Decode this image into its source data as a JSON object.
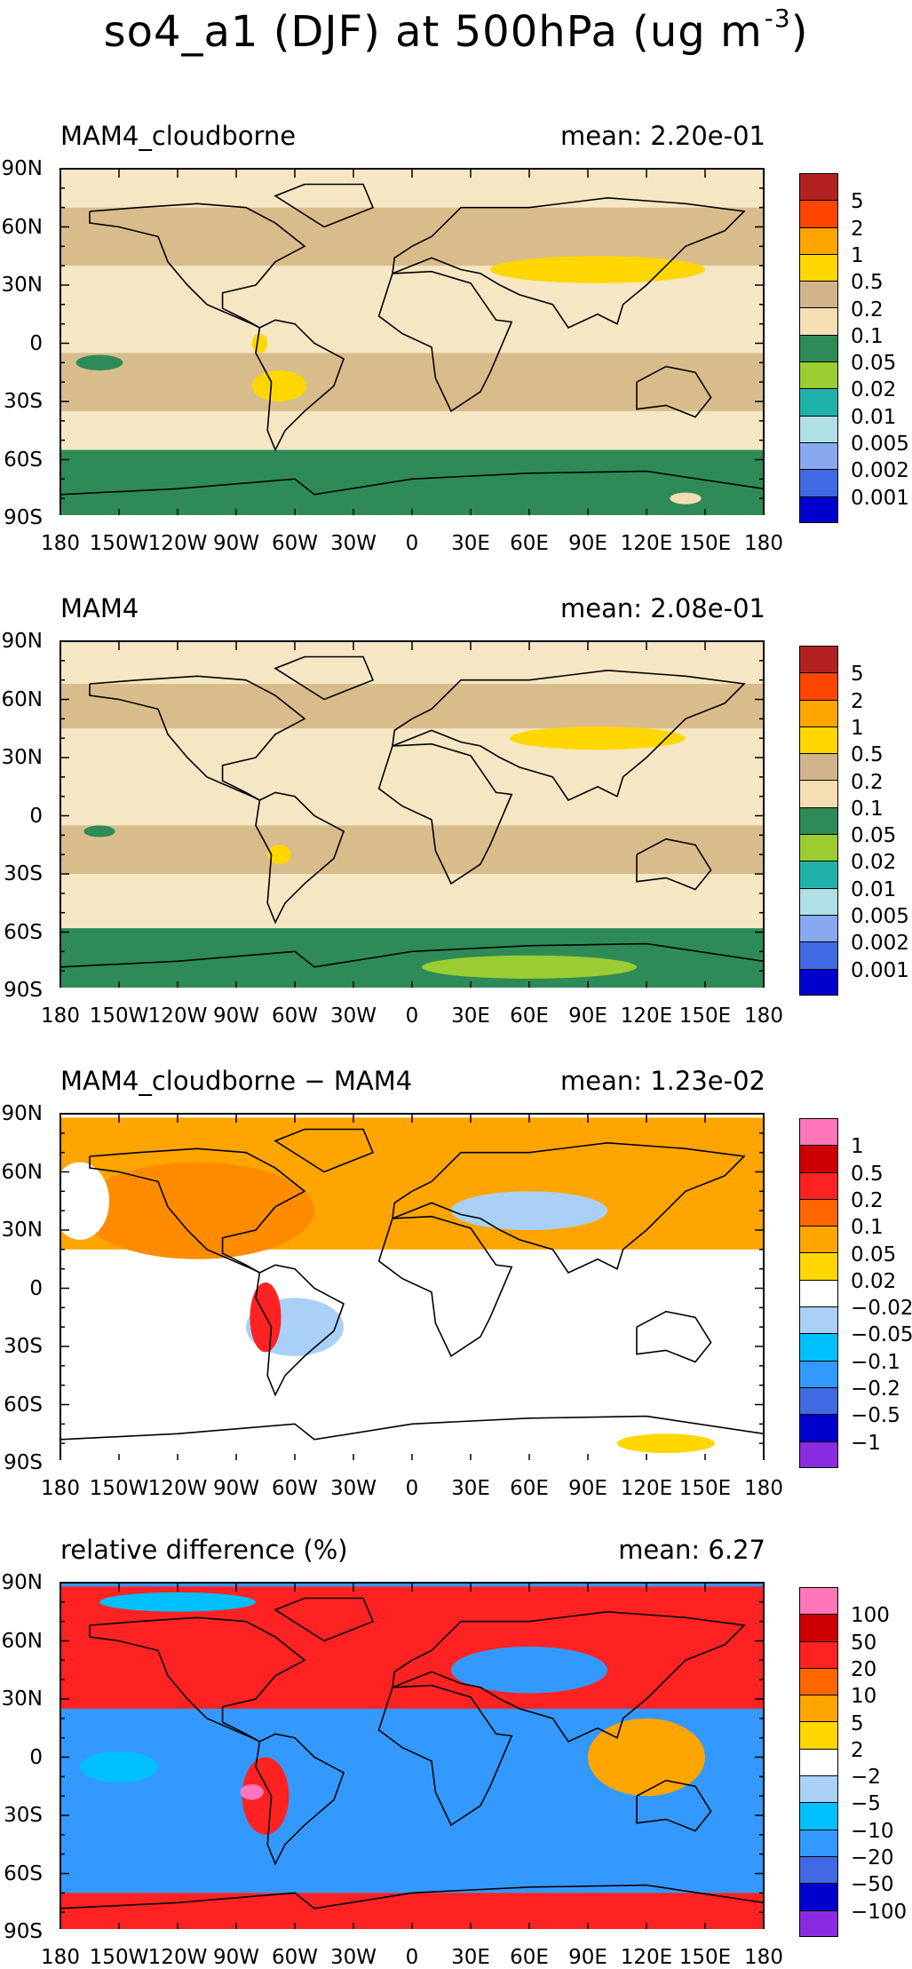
{
  "figure": {
    "title_main": "so4_a1 (DJF) at 500hPa (ug m",
    "title_exp": "-3",
    "title_close": ")"
  },
  "axes": {
    "lon_ticks": [
      "180",
      "150W",
      "120W",
      "90W",
      "60W",
      "30W",
      "0",
      "30E",
      "60E",
      "90E",
      "120E",
      "150E",
      "180"
    ],
    "lat_ticks": [
      "90N",
      "60N",
      "30N",
      "0",
      "30S",
      "60S",
      "90S"
    ]
  },
  "panels": [
    {
      "title": "MAM4_cloudborne",
      "mean": "mean: 2.20e-01",
      "colorbar": {
        "labels": [
          "5",
          "2",
          "1",
          "0.5",
          "0.2",
          "0.1",
          "0.05",
          "0.02",
          "0.01",
          "0.005",
          "0.002",
          "0.001"
        ],
        "colors": [
          "#b22222",
          "#ff4500",
          "#ffa500",
          "#ffd700",
          "#d2b48c",
          "#f5deb3",
          "#2e8b57",
          "#9acd32",
          "#20b2aa",
          "#b0e0e6",
          "#87a9f0",
          "#4169e1",
          "#0000cd"
        ]
      },
      "background": "#f5e6c4",
      "fields": [
        {
          "type": "band",
          "lat": [
            40,
            70
          ],
          "color": "#d9bc8c"
        },
        {
          "type": "band",
          "lat": [
            -35,
            -5
          ],
          "color": "#d9bc8c"
        },
        {
          "type": "band",
          "lat": [
            -90,
            -55
          ],
          "color": "#2e8b57"
        },
        {
          "type": "blob",
          "lon": 95,
          "lat": 38,
          "rx": 55,
          "ry": 7,
          "color": "#ffd700"
        },
        {
          "type": "blob",
          "lon": -68,
          "lat": -22,
          "rx": 14,
          "ry": 8,
          "color": "#ffd700"
        },
        {
          "type": "blob",
          "lon": -78,
          "lat": 0,
          "rx": 4,
          "ry": 5,
          "color": "#ffd700"
        },
        {
          "type": "blob",
          "lon": -160,
          "lat": -10,
          "rx": 12,
          "ry": 4,
          "color": "#2e8b57"
        },
        {
          "type": "blob",
          "lon": 140,
          "lat": -80,
          "rx": 8,
          "ry": 3,
          "color": "#f5deb3"
        }
      ]
    },
    {
      "title": "MAM4",
      "mean": "mean: 2.08e-01",
      "colorbar": {
        "labels": [
          "5",
          "2",
          "1",
          "0.5",
          "0.2",
          "0.1",
          "0.05",
          "0.02",
          "0.01",
          "0.005",
          "0.002",
          "0.001"
        ],
        "colors": [
          "#b22222",
          "#ff4500",
          "#ffa500",
          "#ffd700",
          "#d2b48c",
          "#f5deb3",
          "#2e8b57",
          "#9acd32",
          "#20b2aa",
          "#b0e0e6",
          "#87a9f0",
          "#4169e1",
          "#0000cd"
        ]
      },
      "background": "#f5e6c4",
      "fields": [
        {
          "type": "band",
          "lat": [
            45,
            68
          ],
          "color": "#d9bc8c"
        },
        {
          "type": "band",
          "lat": [
            -30,
            -5
          ],
          "color": "#d9bc8c"
        },
        {
          "type": "band",
          "lat": [
            -90,
            -58
          ],
          "color": "#2e8b57"
        },
        {
          "type": "blob",
          "lon": 95,
          "lat": 40,
          "rx": 45,
          "ry": 6,
          "color": "#ffd700"
        },
        {
          "type": "blob",
          "lon": -68,
          "lat": -20,
          "rx": 6,
          "ry": 5,
          "color": "#ffd700"
        },
        {
          "type": "blob",
          "lon": 60,
          "lat": -78,
          "rx": 55,
          "ry": 6,
          "color": "#9acd32"
        },
        {
          "type": "blob",
          "lon": -160,
          "lat": -8,
          "rx": 8,
          "ry": 3,
          "color": "#2e8b57"
        }
      ]
    },
    {
      "title": "MAM4_cloudborne − MAM4",
      "mean": "mean: 1.23e-02",
      "colorbar": {
        "labels": [
          "1",
          "0.5",
          "0.2",
          "0.1",
          "0.05",
          "0.02",
          "−0.02",
          "−0.05",
          "−0.1",
          "−0.2",
          "−0.5",
          "−1"
        ],
        "colors": [
          "#ff77bb",
          "#cc0000",
          "#ff2222",
          "#ff6600",
          "#ffa500",
          "#ffd700",
          "#ffffff",
          "#a9d1f7",
          "#00bfff",
          "#3399ff",
          "#4169e1",
          "#0000cd",
          "#8a2be2"
        ]
      },
      "background": "#ffffff",
      "fields": [
        {
          "type": "band",
          "lat": [
            20,
            88
          ],
          "color": "#ffa500"
        },
        {
          "type": "blob",
          "lon": -110,
          "lat": 40,
          "rx": 60,
          "ry": 25,
          "color": "#ff8c00"
        },
        {
          "type": "blob",
          "lon": 60,
          "lat": 40,
          "rx": 40,
          "ry": 10,
          "color": "#a9d1f7"
        },
        {
          "type": "blob",
          "lon": -60,
          "lat": -20,
          "rx": 25,
          "ry": 15,
          "color": "#a9d1f7"
        },
        {
          "type": "blob",
          "lon": -75,
          "lat": -15,
          "rx": 8,
          "ry": 18,
          "color": "#ff2222"
        },
        {
          "type": "blob",
          "lon": 130,
          "lat": -80,
          "rx": 25,
          "ry": 5,
          "color": "#ffd700"
        },
        {
          "type": "blob",
          "lon": -170,
          "lat": 45,
          "rx": 15,
          "ry": 20,
          "color": "#ffffff"
        }
      ]
    },
    {
      "title": "relative difference (%)",
      "mean": "mean:   6.27",
      "colorbar": {
        "labels": [
          "100",
          "50",
          "20",
          "10",
          "5",
          "2",
          "−2",
          "−5",
          "−10",
          "−20",
          "−50",
          "−100"
        ],
        "colors": [
          "#ff77bb",
          "#cc0000",
          "#ff2222",
          "#ff6600",
          "#ffa500",
          "#ffd700",
          "#ffffff",
          "#a9d1f7",
          "#00bfff",
          "#3399ff",
          "#4169e1",
          "#0000cd",
          "#8a2be2"
        ]
      },
      "background": "#3399ff",
      "fields": [
        {
          "type": "band",
          "lat": [
            25,
            88
          ],
          "color": "#ff2222"
        },
        {
          "type": "band",
          "lat": [
            -90,
            -70
          ],
          "color": "#ff2222"
        },
        {
          "type": "blob",
          "lon": 60,
          "lat": 45,
          "rx": 40,
          "ry": 12,
          "color": "#3399ff"
        },
        {
          "type": "blob",
          "lon": -75,
          "lat": -20,
          "rx": 12,
          "ry": 20,
          "color": "#ff2222"
        },
        {
          "type": "blob",
          "lon": -82,
          "lat": -18,
          "rx": 6,
          "ry": 4,
          "color": "#ff77bb"
        },
        {
          "type": "blob",
          "lon": 120,
          "lat": 0,
          "rx": 30,
          "ry": 20,
          "color": "#ffa500"
        },
        {
          "type": "blob",
          "lon": -150,
          "lat": -5,
          "rx": 20,
          "ry": 8,
          "color": "#00bfff"
        },
        {
          "type": "blob",
          "lon": -120,
          "lat": 80,
          "rx": 40,
          "ry": 5,
          "color": "#00bfff"
        }
      ]
    }
  ]
}
